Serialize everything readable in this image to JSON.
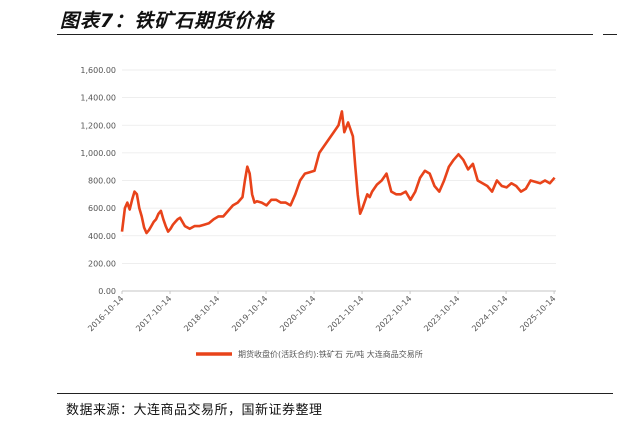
{
  "page": {
    "title": "图表7：铁矿石期货价格",
    "source": "数据来源：大连商品交易所，国新证券整理"
  },
  "chart_data": {
    "type": "line",
    "title": "",
    "ylim": [
      0,
      1600
    ],
    "yticks": [
      0,
      200,
      400,
      600,
      800,
      1000,
      1200,
      1400,
      1600
    ],
    "ytick_labels": [
      "0.00",
      "200.00",
      "400.00",
      "600.00",
      "800.00",
      "1,000.00",
      "1,200.00",
      "1,400.00",
      "1,600.00"
    ],
    "xlim": [
      2016.79,
      2025.83
    ],
    "xticks": [
      2016.79,
      2017.79,
      2018.79,
      2019.79,
      2020.79,
      2021.79,
      2022.79,
      2023.79,
      2024.79,
      2025.79
    ],
    "xtick_labels": [
      "2016-10-14",
      "2017-10-14",
      "2018-10-14",
      "2019-10-14",
      "2020-10-14",
      "2021-10-14",
      "2022-10-14",
      "2023-10-14",
      "2024-10-14",
      "2025-10-14"
    ],
    "legend": "bottom-center",
    "color": "#E8431A",
    "series": [
      {
        "name": "期货收盘价(活跃合约):铁矿石 元/吨 大连商品交易所",
        "x": [
          2016.79,
          2016.85,
          2016.9,
          2016.95,
          2017.0,
          2017.05,
          2017.1,
          2017.15,
          2017.2,
          2017.25,
          2017.3,
          2017.35,
          2017.4,
          2017.45,
          2017.5,
          2017.55,
          2017.6,
          2017.65,
          2017.7,
          2017.75,
          2017.8,
          2017.85,
          2017.9,
          2017.95,
          2018.0,
          2018.1,
          2018.2,
          2018.3,
          2018.4,
          2018.5,
          2018.6,
          2018.7,
          2018.8,
          2018.9,
          2019.0,
          2019.1,
          2019.2,
          2019.3,
          2019.35,
          2019.4,
          2019.45,
          2019.5,
          2019.55,
          2019.6,
          2019.7,
          2019.8,
          2019.9,
          2020.0,
          2020.1,
          2020.2,
          2020.3,
          2020.4,
          2020.5,
          2020.6,
          2020.7,
          2020.8,
          2020.9,
          2021.0,
          2021.1,
          2021.2,
          2021.3,
          2021.37,
          2021.42,
          2021.5,
          2021.6,
          2021.65,
          2021.7,
          2021.75,
          2021.8,
          2021.85,
          2021.9,
          2021.95,
          2022.0,
          2022.1,
          2022.2,
          2022.3,
          2022.4,
          2022.5,
          2022.6,
          2022.7,
          2022.8,
          2022.9,
          2023.0,
          2023.1,
          2023.2,
          2023.3,
          2023.4,
          2023.5,
          2023.6,
          2023.7,
          2023.8,
          2023.9,
          2024.0,
          2024.1,
          2024.2,
          2024.3,
          2024.4,
          2024.5,
          2024.6,
          2024.7,
          2024.8,
          2024.9,
          2025.0,
          2025.1,
          2025.2,
          2025.3,
          2025.4,
          2025.5,
          2025.6,
          2025.7,
          2025.8
        ],
        "y": [
          430,
          600,
          640,
          590,
          660,
          720,
          700,
          600,
          540,
          460,
          420,
          440,
          470,
          500,
          520,
          560,
          580,
          520,
          470,
          430,
          450,
          480,
          500,
          520,
          530,
          470,
          450,
          470,
          470,
          480,
          490,
          520,
          540,
          540,
          580,
          620,
          640,
          680,
          800,
          900,
          850,
          700,
          640,
          650,
          640,
          620,
          660,
          660,
          640,
          640,
          620,
          700,
          800,
          850,
          860,
          870,
          1000,
          1050,
          1100,
          1150,
          1200,
          1300,
          1150,
          1220,
          1120,
          900,
          700,
          560,
          600,
          650,
          700,
          680,
          720,
          770,
          800,
          850,
          720,
          700,
          700,
          720,
          660,
          720,
          820,
          870,
          850,
          760,
          720,
          800,
          900,
          950,
          990,
          950,
          880,
          920,
          800,
          780,
          760,
          720,
          800,
          760,
          750,
          780,
          760,
          720,
          740,
          800,
          790,
          780,
          800,
          780,
          820
        ]
      }
    ]
  }
}
